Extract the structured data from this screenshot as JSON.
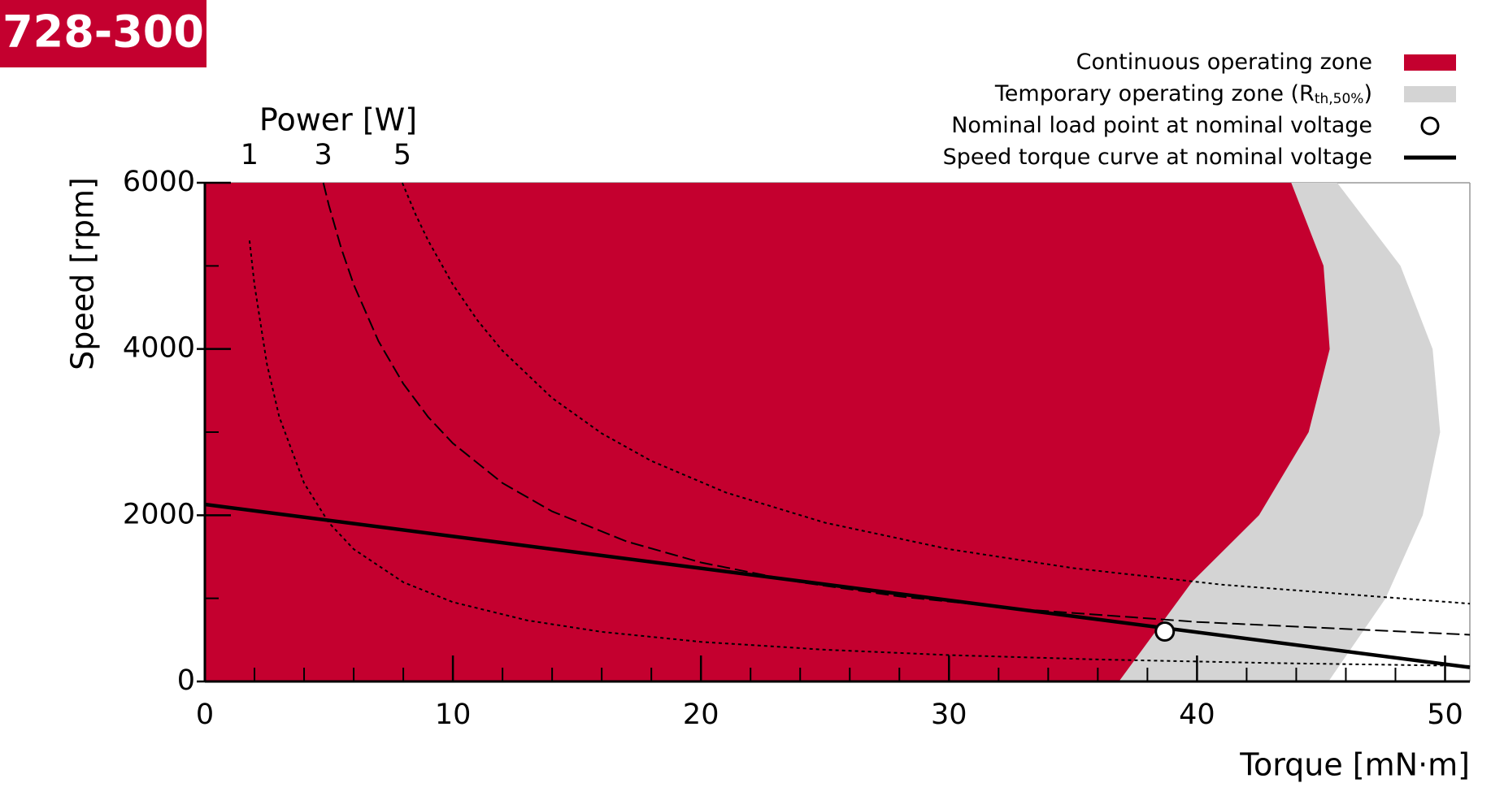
{
  "chart_data": {
    "type": "operating-range",
    "title": "728-300",
    "x_label": "Torque [mN·m]",
    "y_label": "Speed [rpm]",
    "top_label": "Power [W]",
    "xlim": [
      0,
      51
    ],
    "ylim": [
      0,
      6000
    ],
    "xticks": [
      0,
      10,
      20,
      30,
      40,
      50
    ],
    "yticks": [
      0,
      2000,
      4000,
      6000
    ],
    "xminorticks": [
      2,
      4,
      6,
      8,
      12,
      14,
      16,
      18,
      22,
      24,
      26,
      28,
      32,
      34,
      36,
      38,
      42,
      44,
      46,
      48
    ],
    "yminorticks": [
      1000,
      3000,
      5000
    ],
    "series": [
      {
        "name": "Temporary operating zone (R",
        "name_sub": "th,50%",
        "name_end": ")",
        "style": "area",
        "color": "#d4d4d4",
        "x": [
          0,
          45.3,
          47.6,
          49.1,
          49.8,
          49.5,
          48.2,
          45.65,
          0
        ],
        "values": [
          0,
          0,
          1000,
          2000,
          3000,
          4000,
          5000,
          6000,
          6000
        ]
      },
      {
        "name": "Continuous operating zone",
        "style": "area",
        "color": "#c4002f",
        "x": [
          0,
          36.85,
          39.8,
          42.5,
          44.5,
          45.35,
          45.1,
          43.8,
          0
        ],
        "values": [
          0,
          0,
          1200,
          2000,
          3000,
          4000,
          5000,
          6000,
          6000
        ]
      },
      {
        "name": "Speed torque curve at nominal voltage",
        "style": "line",
        "color": "#000000",
        "x": [
          0,
          51
        ],
        "values": [
          2130,
          170
        ]
      },
      {
        "name": "Nominal load point at nominal voltage",
        "style": "point",
        "color": "#000000",
        "x": [
          38.7
        ],
        "values": [
          601
        ]
      }
    ],
    "power_curves": [
      {
        "label": "1",
        "dash": "dotted",
        "x": [
          1.8,
          2,
          2.5,
          3,
          4,
          5,
          6,
          8,
          10,
          13,
          16,
          20,
          25,
          30,
          36,
          43,
          51
        ],
        "values": [
          5305,
          4775,
          3820,
          3183,
          2387,
          1910,
          1592,
          1194,
          955,
          735,
          597,
          477,
          382,
          318,
          265,
          222,
          187
        ]
      },
      {
        "label": "3",
        "dash": "dashed",
        "x": [
          4.775,
          5,
          5.5,
          6,
          7,
          8,
          9,
          10,
          12,
          14,
          17,
          20,
          24,
          28,
          33,
          40,
          51
        ],
        "values": [
          6000,
          5730,
          5209,
          4775,
          4093,
          3581,
          3183,
          2865,
          2387,
          2046,
          1685,
          1432,
          1194,
          1023,
          868,
          716,
          562
        ]
      },
      {
        "label": "5",
        "dash": "dotted",
        "x": [
          7.96,
          8.5,
          9,
          10,
          11,
          12,
          14,
          16,
          18,
          21,
          25,
          30,
          35,
          41,
          51
        ],
        "values": [
          5998,
          5617,
          5305,
          4775,
          4341,
          3979,
          3410,
          2984,
          2653,
          2274,
          1910,
          1592,
          1364,
          1165,
          936
        ]
      }
    ]
  }
}
